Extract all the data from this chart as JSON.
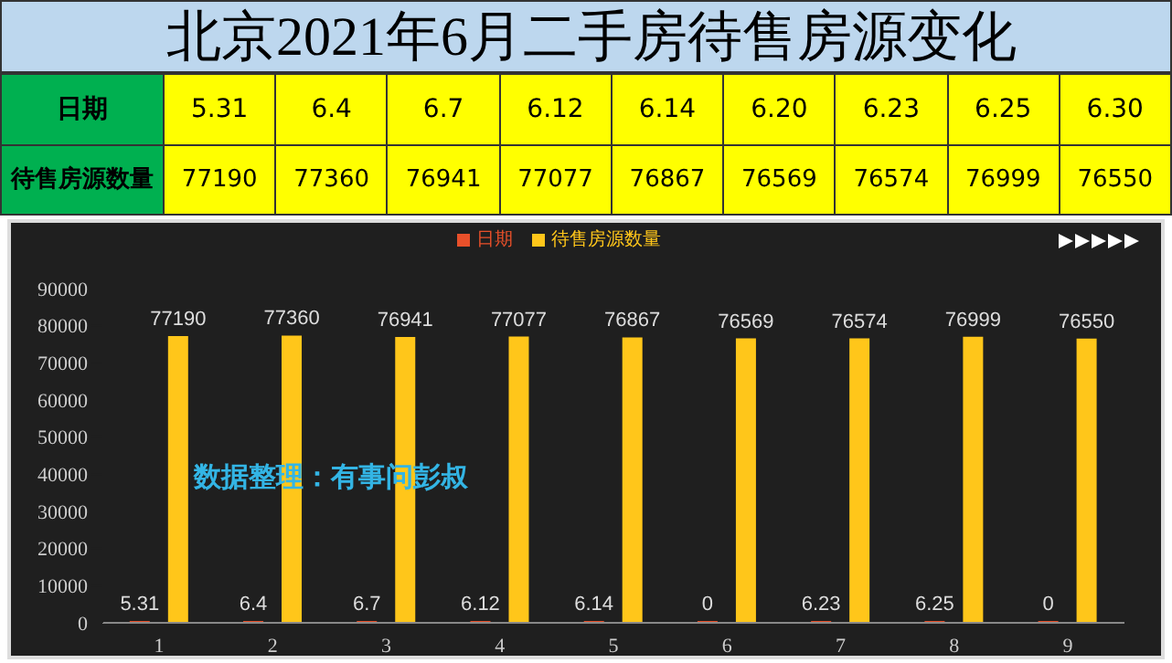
{
  "chart_data": [
    {
      "type": "other",
      "title": "北京2021年6月二手房待售房源变化",
      "xlabel": "日期",
      "data_labels": true,
      "categories": [
        "5.31",
        "6.4",
        "6.7",
        "6.12",
        "6.14",
        "6.20",
        "6.23",
        "6.25",
        "6.30"
      ],
      "series": [
        {
          "name": "待售房源数量",
          "values": [
            77190,
            77360,
            76941,
            77077,
            76867,
            76569,
            76574,
            76999,
            76550
          ]
        }
      ]
    },
    {
      "type": "bar",
      "categories": [
        "1",
        "2",
        "3",
        "4",
        "5",
        "6",
        "7",
        "8",
        "9"
      ],
      "series": [
        {
          "name": "日期",
          "color": "#e8502a",
          "values": [
            5.31,
            6.4,
            6.7,
            6.12,
            6.14,
            0,
            6.23,
            6.25,
            0
          ]
        },
        {
          "name": "待售房源数量",
          "color": "#ffc61a",
          "values": [
            77190,
            77360,
            76941,
            77077,
            76867,
            76569,
            76574,
            76999,
            76550
          ]
        }
      ],
      "ylim": [
        0,
        90000
      ],
      "yticks": [
        0,
        10000,
        20000,
        30000,
        40000,
        50000,
        60000,
        70000,
        80000,
        90000
      ],
      "legend": "top",
      "data_labels": true,
      "grid": false,
      "annotations": [
        "数据整理：有事问彭叔"
      ]
    }
  ]
}
